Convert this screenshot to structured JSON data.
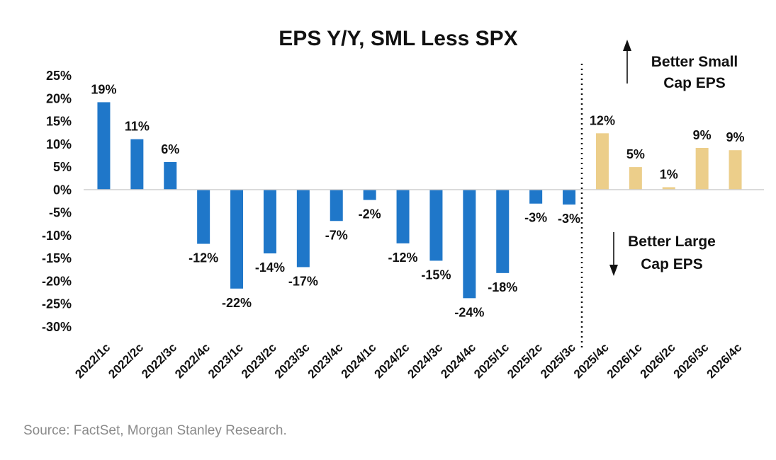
{
  "chart_data": {
    "type": "bar",
    "title": "EPS Y/Y, SML Less SPX",
    "xlabel": "",
    "ylabel": "",
    "ylim": [
      -30,
      25
    ],
    "yticks": [
      25,
      20,
      15,
      10,
      5,
      0,
      -5,
      -10,
      -15,
      -20,
      -25,
      -30
    ],
    "ytick_labels": [
      "25%",
      "20%",
      "15%",
      "10%",
      "5%",
      "0%",
      "-5%",
      "-10%",
      "-15%",
      "-20%",
      "-25%",
      "-30%"
    ],
    "categories": [
      "2022/1c",
      "2022/2c",
      "2022/3c",
      "2022/4c",
      "2023/1c",
      "2023/2c",
      "2023/3c",
      "2023/4c",
      "2024/1c",
      "2024/2c",
      "2024/3c",
      "2024/4c",
      "2025/1c",
      "2025/2c",
      "2025/3c",
      "2025/4c",
      "2026/1c",
      "2026/2c",
      "2026/3c",
      "2026/4c"
    ],
    "values": [
      19.2,
      11.1,
      6.1,
      -11.8,
      -21.6,
      -13.9,
      -16.9,
      -6.8,
      -2.2,
      -11.7,
      -15.5,
      -23.7,
      -18.2,
      -3.0,
      -3.2,
      12.4,
      5.0,
      0.6,
      9.2,
      8.7
    ],
    "labels": [
      "19%",
      "11%",
      "6%",
      "-12%",
      "-22%",
      "-14%",
      "-17%",
      "-7%",
      "-2%",
      "-12%",
      "-15%",
      "-24%",
      "-18%",
      "-3%",
      "-3%",
      "12%",
      "5%",
      "1%",
      "9%",
      "9%"
    ],
    "series_colors": {
      "actual": "#1f77c9",
      "estimate": "#ecce8a"
    },
    "estimate_start_index": 15,
    "annotations": {
      "up_line1": "Better Small",
      "up_line2": "Cap EPS",
      "down_line1": "Better Large",
      "down_line2": "Cap EPS"
    }
  },
  "source": "Source: FactSet, Morgan Stanley Research."
}
